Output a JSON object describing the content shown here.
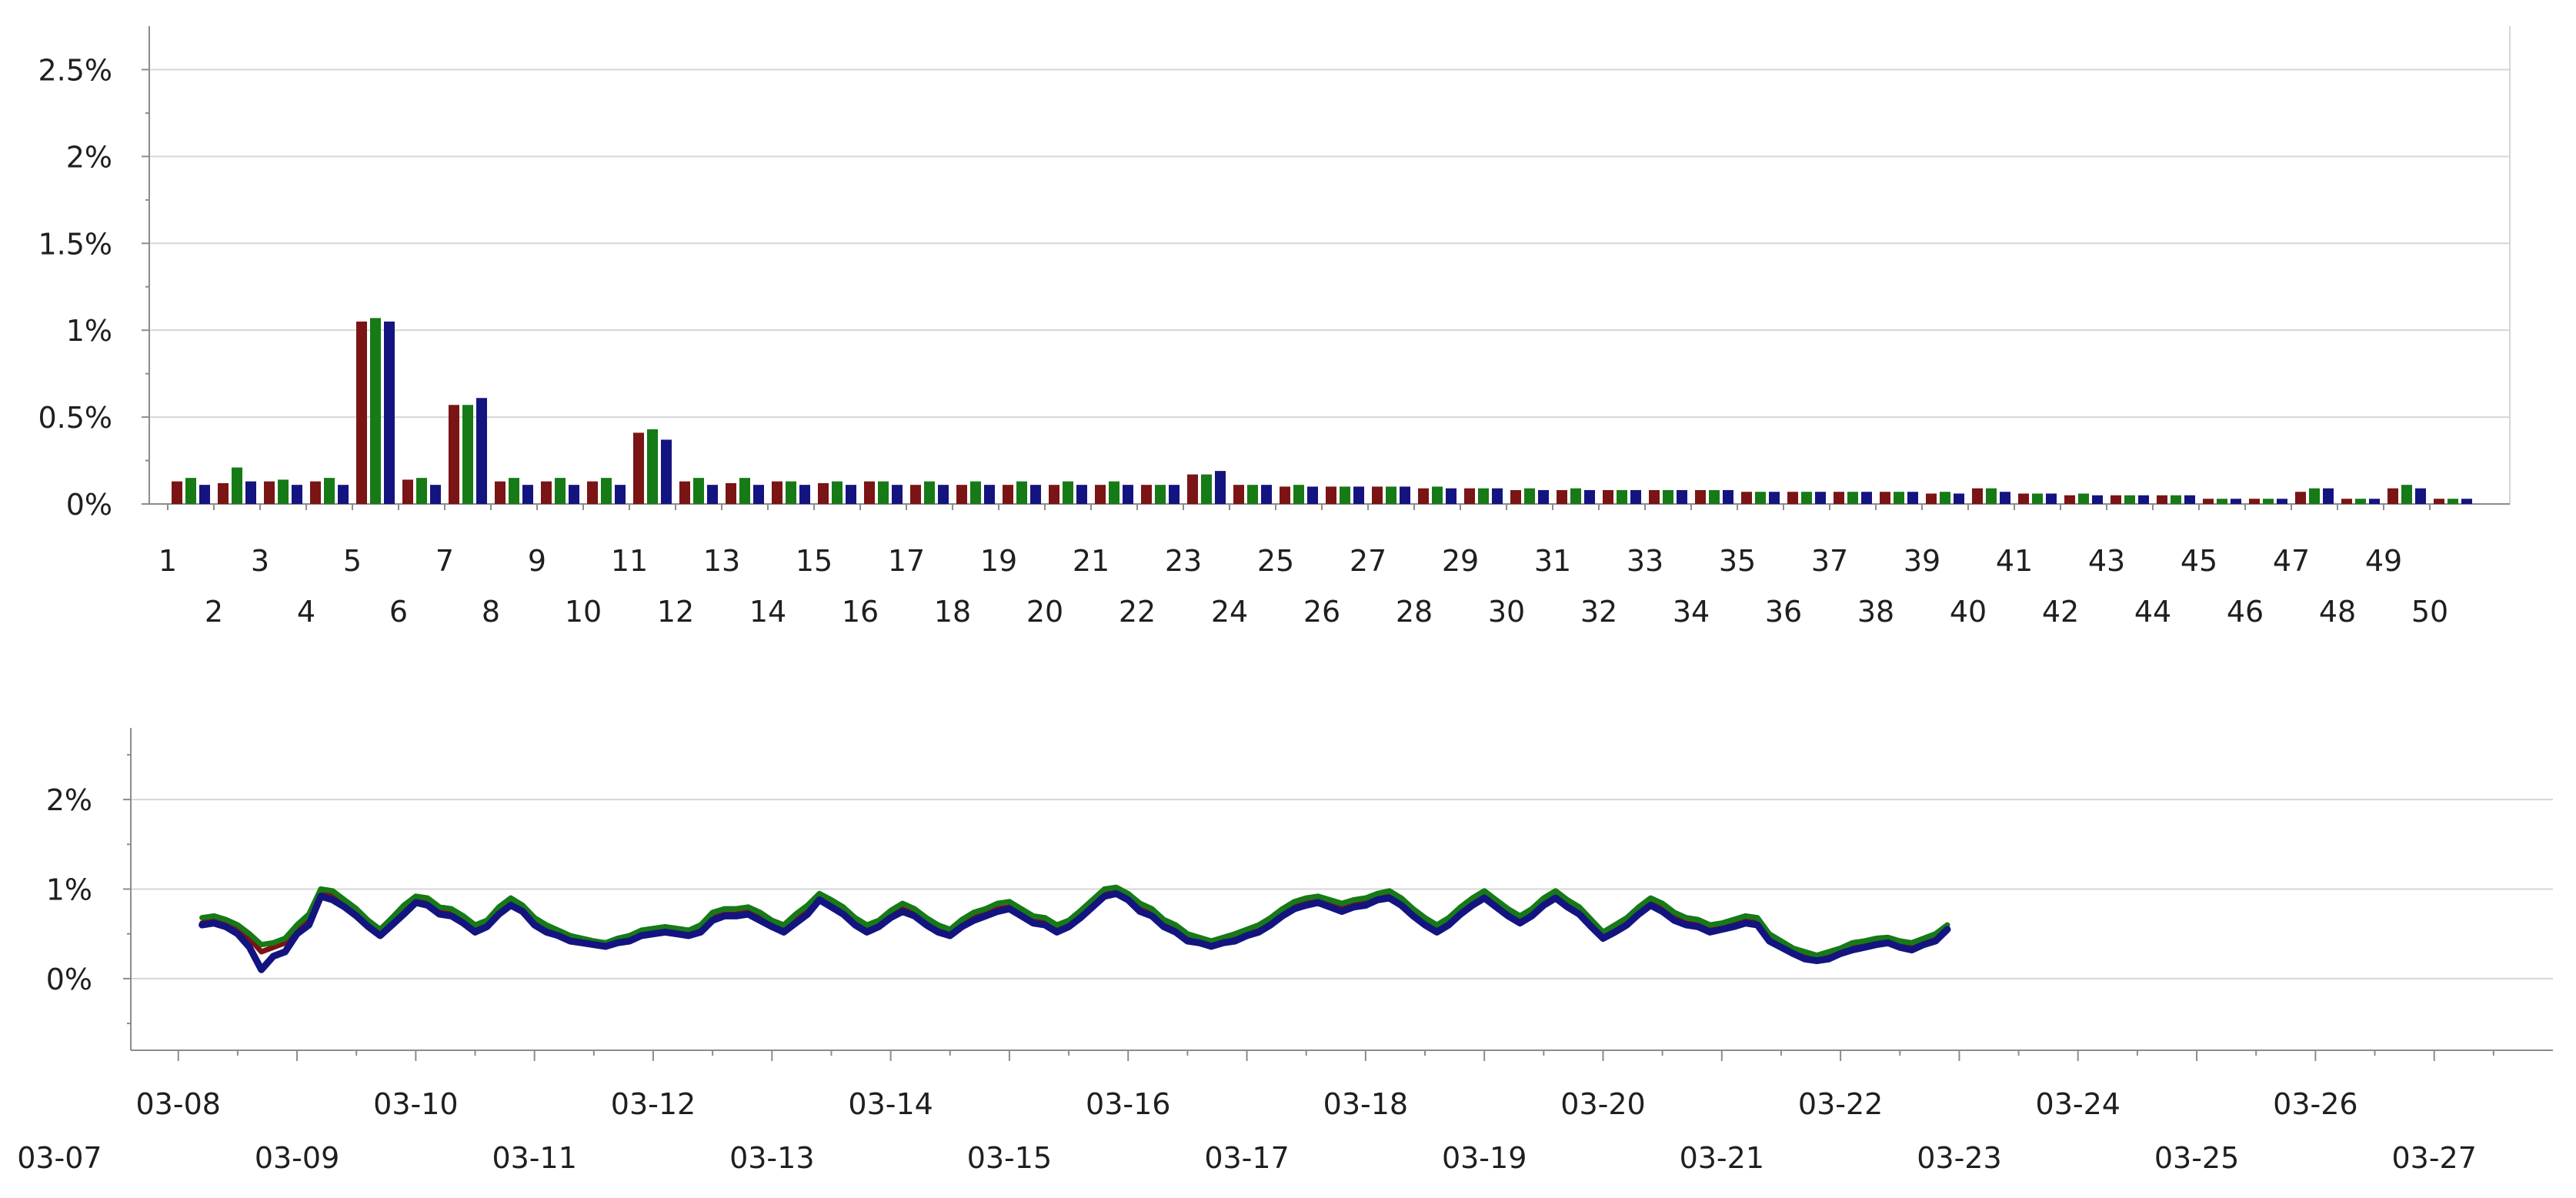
{
  "colors": {
    "series1": "#7b1414",
    "series2": "#167a16",
    "series3": "#141480",
    "grid": "#d6d6d6",
    "axis": "#8c8c8c"
  },
  "chart_data": [
    {
      "type": "bar",
      "title": "",
      "xlabel": "",
      "ylabel": "",
      "ylim": [
        0,
        2.75
      ],
      "yticks": [
        "0%",
        "0.5%",
        "1%",
        "1.5%",
        "2%",
        "2.5%"
      ],
      "ytick_values": [
        0,
        0.5,
        1,
        1.5,
        2,
        2.5
      ],
      "grid": true,
      "categories": [
        "1",
        "2",
        "3",
        "4",
        "5",
        "6",
        "7",
        "8",
        "9",
        "10",
        "11",
        "12",
        "13",
        "14",
        "15",
        "16",
        "17",
        "18",
        "19",
        "20",
        "21",
        "22",
        "23",
        "24",
        "25",
        "26",
        "27",
        "28",
        "29",
        "30",
        "31",
        "32",
        "33",
        "34",
        "35",
        "36",
        "37",
        "38",
        "39",
        "40",
        "41",
        "42",
        "43",
        "44",
        "45",
        "46",
        "47",
        "48",
        "49",
        "50"
      ],
      "series": [
        {
          "values": [
            0.13,
            0.12,
            0.13,
            0.13,
            1.05,
            0.14,
            0.57,
            0.13,
            0.13,
            0.13,
            0.41,
            0.13,
            0.12,
            0.13,
            0.12,
            0.13,
            0.11,
            0.11,
            0.11,
            0.11,
            0.11,
            0.11,
            0.17,
            0.11,
            0.1,
            0.1,
            0.1,
            0.09,
            0.09,
            0.08,
            0.08,
            0.08,
            0.08,
            0.08,
            0.07,
            0.07,
            0.07,
            0.07,
            0.06,
            0.09,
            0.06,
            0.05,
            0.05,
            0.05,
            0.03,
            0.03,
            0.07,
            0.03,
            0.09,
            0.03
          ]
        },
        {
          "values": [
            0.15,
            0.21,
            0.14,
            0.15,
            1.07,
            0.15,
            0.57,
            0.15,
            0.15,
            0.15,
            0.43,
            0.15,
            0.15,
            0.13,
            0.13,
            0.13,
            0.13,
            0.13,
            0.13,
            0.13,
            0.13,
            0.11,
            0.17,
            0.11,
            0.11,
            0.1,
            0.1,
            0.1,
            0.09,
            0.09,
            0.09,
            0.08,
            0.08,
            0.08,
            0.07,
            0.07,
            0.07,
            0.07,
            0.07,
            0.09,
            0.06,
            0.06,
            0.05,
            0.05,
            0.03,
            0.03,
            0.09,
            0.03,
            0.11,
            0.03
          ]
        },
        {
          "values": [
            0.11,
            0.13,
            0.11,
            0.11,
            1.05,
            0.11,
            0.61,
            0.11,
            0.11,
            0.11,
            0.37,
            0.11,
            0.11,
            0.11,
            0.11,
            0.11,
            0.11,
            0.11,
            0.11,
            0.11,
            0.11,
            0.11,
            0.19,
            0.11,
            0.1,
            0.1,
            0.1,
            0.09,
            0.09,
            0.08,
            0.08,
            0.08,
            0.08,
            0.08,
            0.07,
            0.07,
            0.07,
            0.07,
            0.06,
            0.07,
            0.06,
            0.05,
            0.05,
            0.05,
            0.03,
            0.03,
            0.09,
            0.03,
            0.09,
            0.03
          ]
        }
      ]
    },
    {
      "type": "line",
      "title": "",
      "xlabel": "",
      "ylabel": "",
      "ylim": [
        -0.8,
        2.8
      ],
      "yticks": [
        "0%",
        "1%",
        "2%"
      ],
      "ytick_values": [
        0,
        1,
        2
      ],
      "grid": true,
      "x_tick_labels": [
        "03-07",
        "03-08",
        "03-09",
        "03-10",
        "03-11",
        "03-12",
        "03-13",
        "03-14",
        "03-15",
        "03-16",
        "03-17",
        "03-18",
        "03-19",
        "03-20",
        "03-21",
        "03-22",
        "03-23",
        "03-24",
        "03-25",
        "03-26",
        "03-27"
      ],
      "x_range": [
        0.6,
        21.0
      ],
      "x_start": 1.2,
      "x_step": 0.1,
      "series": [
        {
          "values": [
            0.62,
            0.65,
            0.6,
            0.55,
            0.45,
            0.3,
            0.35,
            0.4,
            0.55,
            0.65,
            0.95,
            0.92,
            0.82,
            0.72,
            0.6,
            0.5,
            0.62,
            0.75,
            0.88,
            0.85,
            0.75,
            0.72,
            0.65,
            0.55,
            0.6,
            0.75,
            0.85,
            0.78,
            0.62,
            0.55,
            0.5,
            0.45,
            0.42,
            0.4,
            0.38,
            0.42,
            0.45,
            0.5,
            0.52,
            0.55,
            0.52,
            0.5,
            0.55,
            0.68,
            0.72,
            0.72,
            0.75,
            0.68,
            0.6,
            0.55,
            0.65,
            0.75,
            0.9,
            0.82,
            0.75,
            0.62,
            0.55,
            0.6,
            0.7,
            0.78,
            0.72,
            0.62,
            0.55,
            0.5,
            0.6,
            0.68,
            0.72,
            0.78,
            0.8,
            0.72,
            0.65,
            0.62,
            0.55,
            0.6,
            0.7,
            0.82,
            0.95,
            0.98,
            0.9,
            0.78,
            0.72,
            0.6,
            0.55,
            0.45,
            0.42,
            0.38,
            0.42,
            0.45,
            0.5,
            0.55,
            0.62,
            0.72,
            0.8,
            0.85,
            0.88,
            0.82,
            0.78,
            0.82,
            0.85,
            0.9,
            0.92,
            0.85,
            0.72,
            0.62,
            0.55,
            0.62,
            0.75,
            0.85,
            0.92,
            0.82,
            0.72,
            0.65,
            0.72,
            0.85,
            0.92,
            0.82,
            0.75,
            0.6,
            0.48,
            0.55,
            0.62,
            0.75,
            0.85,
            0.78,
            0.68,
            0.62,
            0.6,
            0.55,
            0.58,
            0.6,
            0.65,
            0.62,
            0.45,
            0.38,
            0.3,
            0.25,
            0.22,
            0.25,
            0.3,
            0.35,
            0.38,
            0.4,
            0.42,
            0.38,
            0.35,
            0.4,
            0.45,
            0.55
          ]
        },
        {
          "values": [
            0.68,
            0.7,
            0.66,
            0.6,
            0.5,
            0.38,
            0.4,
            0.45,
            0.6,
            0.72,
            1.0,
            0.98,
            0.88,
            0.78,
            0.65,
            0.55,
            0.68,
            0.82,
            0.92,
            0.9,
            0.8,
            0.78,
            0.7,
            0.6,
            0.65,
            0.8,
            0.9,
            0.82,
            0.68,
            0.6,
            0.54,
            0.48,
            0.45,
            0.42,
            0.4,
            0.45,
            0.48,
            0.54,
            0.56,
            0.58,
            0.56,
            0.54,
            0.6,
            0.74,
            0.78,
            0.78,
            0.8,
            0.74,
            0.65,
            0.6,
            0.72,
            0.82,
            0.95,
            0.88,
            0.8,
            0.68,
            0.6,
            0.65,
            0.76,
            0.84,
            0.78,
            0.68,
            0.6,
            0.55,
            0.66,
            0.74,
            0.78,
            0.84,
            0.86,
            0.78,
            0.7,
            0.68,
            0.6,
            0.65,
            0.76,
            0.88,
            1.0,
            1.02,
            0.95,
            0.84,
            0.78,
            0.66,
            0.6,
            0.5,
            0.46,
            0.42,
            0.46,
            0.5,
            0.55,
            0.6,
            0.68,
            0.78,
            0.86,
            0.9,
            0.92,
            0.88,
            0.84,
            0.88,
            0.9,
            0.95,
            0.98,
            0.9,
            0.78,
            0.68,
            0.6,
            0.68,
            0.8,
            0.9,
            0.98,
            0.88,
            0.78,
            0.7,
            0.78,
            0.9,
            0.98,
            0.88,
            0.8,
            0.66,
            0.52,
            0.6,
            0.68,
            0.8,
            0.9,
            0.84,
            0.74,
            0.68,
            0.66,
            0.6,
            0.62,
            0.66,
            0.7,
            0.68,
            0.5,
            0.42,
            0.34,
            0.3,
            0.26,
            0.3,
            0.34,
            0.4,
            0.42,
            0.45,
            0.46,
            0.42,
            0.4,
            0.45,
            0.5,
            0.6
          ]
        },
        {
          "values": [
            0.6,
            0.62,
            0.58,
            0.5,
            0.35,
            0.1,
            0.25,
            0.3,
            0.5,
            0.6,
            0.92,
            0.88,
            0.8,
            0.7,
            0.58,
            0.48,
            0.6,
            0.72,
            0.85,
            0.82,
            0.72,
            0.7,
            0.62,
            0.52,
            0.58,
            0.72,
            0.82,
            0.75,
            0.6,
            0.52,
            0.48,
            0.42,
            0.4,
            0.38,
            0.36,
            0.4,
            0.42,
            0.48,
            0.5,
            0.52,
            0.5,
            0.48,
            0.52,
            0.65,
            0.7,
            0.7,
            0.72,
            0.65,
            0.58,
            0.52,
            0.62,
            0.72,
            0.88,
            0.8,
            0.72,
            0.6,
            0.52,
            0.58,
            0.68,
            0.75,
            0.7,
            0.6,
            0.52,
            0.48,
            0.58,
            0.65,
            0.7,
            0.75,
            0.78,
            0.7,
            0.62,
            0.6,
            0.52,
            0.58,
            0.68,
            0.8,
            0.92,
            0.95,
            0.88,
            0.75,
            0.7,
            0.58,
            0.52,
            0.42,
            0.4,
            0.36,
            0.4,
            0.42,
            0.48,
            0.52,
            0.6,
            0.7,
            0.78,
            0.82,
            0.85,
            0.8,
            0.75,
            0.8,
            0.82,
            0.88,
            0.9,
            0.82,
            0.7,
            0.6,
            0.52,
            0.6,
            0.72,
            0.82,
            0.9,
            0.8,
            0.7,
            0.62,
            0.7,
            0.82,
            0.9,
            0.8,
            0.72,
            0.58,
            0.45,
            0.52,
            0.6,
            0.72,
            0.82,
            0.75,
            0.65,
            0.6,
            0.58,
            0.52,
            0.55,
            0.58,
            0.62,
            0.6,
            0.42,
            0.35,
            0.28,
            0.22,
            0.2,
            0.22,
            0.28,
            0.32,
            0.35,
            0.38,
            0.4,
            0.35,
            0.32,
            0.38,
            0.42,
            0.55
          ]
        }
      ]
    }
  ]
}
